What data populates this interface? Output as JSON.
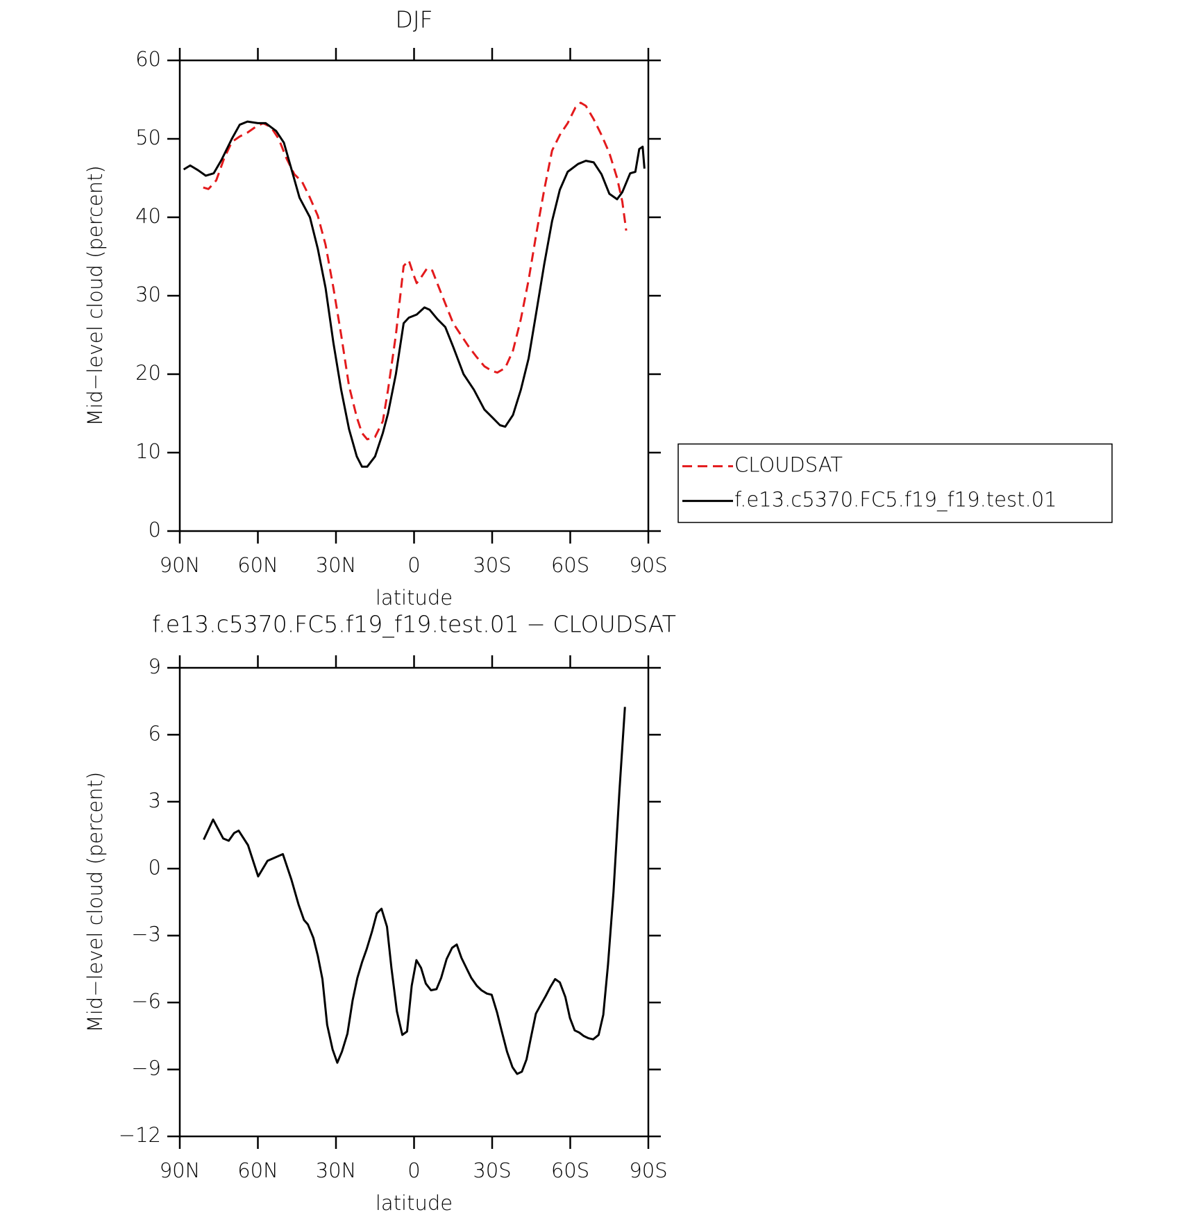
{
  "chart_data": [
    {
      "type": "line",
      "title": "DJF",
      "xlabel": "latitude",
      "ylabel": "Mid−level cloud (percent)",
      "xlim": [
        90,
        -90
      ],
      "xticks": [
        {
          "value": 90,
          "label": "90N"
        },
        {
          "value": 60,
          "label": "60N"
        },
        {
          "value": 30,
          "label": "30N"
        },
        0,
        {
          "value": -30,
          "label": "30S"
        },
        {
          "value": -60,
          "label": "60S"
        },
        {
          "value": -90,
          "label": "90S"
        }
      ],
      "ylim": [
        0,
        60
      ],
      "yticks": [
        0,
        10,
        20,
        30,
        40,
        50,
        60
      ],
      "legend": "right",
      "series": [
        {
          "name": "CLOUDSAT",
          "color": "#e31a1c",
          "dash": true,
          "x": [
            81,
            79,
            76,
            73,
            70,
            67,
            64,
            61,
            58,
            55,
            52,
            49,
            46,
            43,
            40,
            37,
            34,
            31,
            28,
            25,
            22,
            20,
            18,
            15,
            12,
            10,
            7,
            4,
            2,
            0,
            -1,
            -3,
            -5,
            -7,
            -9,
            -12,
            -15,
            -18,
            -21,
            -24,
            -27,
            -30,
            -32,
            -35,
            -38,
            -41,
            -44,
            -47,
            -50,
            -53,
            -56,
            -59,
            -62,
            -64,
            -66,
            -69,
            -72,
            -75,
            -78,
            -80,
            -81.5
          ],
          "values": [
            43.8,
            43.6,
            44.7,
            47.5,
            49.6,
            50.3,
            50.8,
            51.5,
            52.0,
            51.5,
            50,
            47.5,
            45.5,
            44.5,
            42.5,
            40.2,
            36.5,
            31,
            25,
            18.5,
            14.5,
            12.5,
            11.7,
            12,
            14,
            18,
            25,
            33.8,
            34.5,
            32.5,
            31.6,
            32.5,
            33.5,
            33.2,
            31.5,
            29,
            26.5,
            25,
            23.5,
            22.2,
            21,
            20.4,
            20.2,
            20.8,
            23,
            27,
            32,
            38,
            43.5,
            48.5,
            50.5,
            52,
            54,
            54.6,
            54.2,
            52.5,
            50.5,
            48.2,
            45,
            42,
            38.3
          ]
        },
        {
          "name": "f.e13.c5370.FC5.f19_f19.test.01",
          "color": "#000000",
          "dash": false,
          "x": [
            88.5,
            86,
            83,
            80,
            77,
            74,
            70,
            67,
            64,
            60,
            57,
            53,
            50,
            47,
            44,
            40,
            37,
            34,
            31,
            28,
            25,
            22,
            20,
            18,
            15,
            12,
            10,
            7,
            4,
            2,
            -1,
            -4,
            -6,
            -9,
            -12,
            -15,
            -19,
            -23,
            -27,
            -30,
            -33,
            -35,
            -38,
            -41,
            -44,
            -47,
            -50,
            -53,
            -56,
            -59,
            -63,
            -66,
            -69,
            -72,
            -75,
            -78,
            -80,
            -83,
            -85,
            -86.5,
            -87.8,
            -88.5
          ],
          "values": [
            46.1,
            46.6,
            46.0,
            45.3,
            45.6,
            47.3,
            50,
            51.8,
            52.2,
            52.0,
            52.0,
            51,
            49.5,
            46,
            42.5,
            40,
            36,
            31,
            24,
            18,
            13,
            9.5,
            8.2,
            8.2,
            9.5,
            12.5,
            15,
            20,
            26.5,
            27.2,
            27.6,
            28.5,
            28.2,
            27,
            26,
            23.5,
            20,
            18,
            15.5,
            14.5,
            13.5,
            13.3,
            14.8,
            18,
            22,
            28,
            34,
            39.5,
            43.5,
            45.8,
            46.8,
            47.2,
            47,
            45.5,
            43,
            42.3,
            43.2,
            45.6,
            45.8,
            48.7,
            49,
            46.2
          ]
        }
      ]
    },
    {
      "type": "line",
      "title": "f.e13.c5370.FC5.f19_f19.test.01 − CLOUDSAT",
      "xlabel": "latitude",
      "ylabel": "Mid−level cloud (percent)",
      "xlim": [
        90,
        -90
      ],
      "xticks": [
        {
          "value": 90,
          "label": "90N"
        },
        {
          "value": 60,
          "label": "60N"
        },
        {
          "value": 30,
          "label": "30N"
        },
        0,
        {
          "value": -30,
          "label": "30S"
        },
        {
          "value": -60,
          "label": "60S"
        },
        {
          "value": -90,
          "label": "90S"
        }
      ],
      "ylim": [
        -12,
        9
      ],
      "yticks": [
        {
          "value": -12,
          "label": "−12"
        },
        {
          "value": -9,
          "label": "−9"
        },
        {
          "value": -6,
          "label": "−6"
        },
        {
          "value": -3,
          "label": "−3"
        },
        0,
        3,
        6,
        9
      ],
      "color": "#000000",
      "x": [
        80.8,
        77.2,
        73.3,
        71.2,
        69.1,
        67.4,
        63.8,
        59.9,
        56.3,
        50.4,
        47.1,
        44.4,
        42.3,
        40.8,
        38.7,
        37,
        35.2,
        33.4,
        31.3,
        29.5,
        27.7,
        25.6,
        23.6,
        21.8,
        20,
        18.2,
        16.1,
        14.3,
        12.5,
        10.4,
        8.7,
        6.6,
        4.5,
        2.7,
        0.9,
        -0.9,
        -2.7,
        -4.5,
        -6.5,
        -8.6,
        -10.4,
        -12.5,
        -14.6,
        -16.4,
        -18.2,
        -20.3,
        -22,
        -24.1,
        -25.9,
        -28,
        -29.8,
        -31.9,
        -33.7,
        -35.7,
        -37.8,
        -39.6,
        -41.4,
        -43.2,
        -45,
        -46.8,
        -48.9,
        -50.6,
        -52.4,
        -54.2,
        -56,
        -58.1,
        -59.9,
        -61.7,
        -63.5,
        -65.2,
        -67,
        -68.8,
        -70.9,
        -72.7,
        -74.5,
        -76.6,
        -78.9,
        -81
      ],
      "values": [
        1.3,
        2.2,
        1.35,
        1.25,
        1.6,
        1.7,
        1.05,
        -0.35,
        0.35,
        0.65,
        -0.5,
        -1.6,
        -2.3,
        -2.5,
        -3.1,
        -3.9,
        -4.95,
        -7.0,
        -8.1,
        -8.7,
        -8.2,
        -7.4,
        -5.9,
        -4.9,
        -4.2,
        -3.6,
        -2.8,
        -2.0,
        -1.8,
        -2.6,
        -4.45,
        -6.4,
        -7.45,
        -7.3,
        -5.25,
        -4.1,
        -4.45,
        -5.15,
        -5.45,
        -5.4,
        -4.9,
        -4.05,
        -3.55,
        -3.4,
        -4.0,
        -4.5,
        -4.9,
        -5.25,
        -5.45,
        -5.6,
        -5.65,
        -6.45,
        -7.3,
        -8.2,
        -8.9,
        -9.2,
        -9.1,
        -8.55,
        -7.5,
        -6.5,
        -6.05,
        -5.7,
        -5.3,
        -4.95,
        -5.1,
        -5.75,
        -6.7,
        -7.25,
        -7.35,
        -7.5,
        -7.6,
        -7.65,
        -7.45,
        -6.55,
        -4.3,
        -1.05,
        3.5,
        7.25
      ]
    }
  ]
}
